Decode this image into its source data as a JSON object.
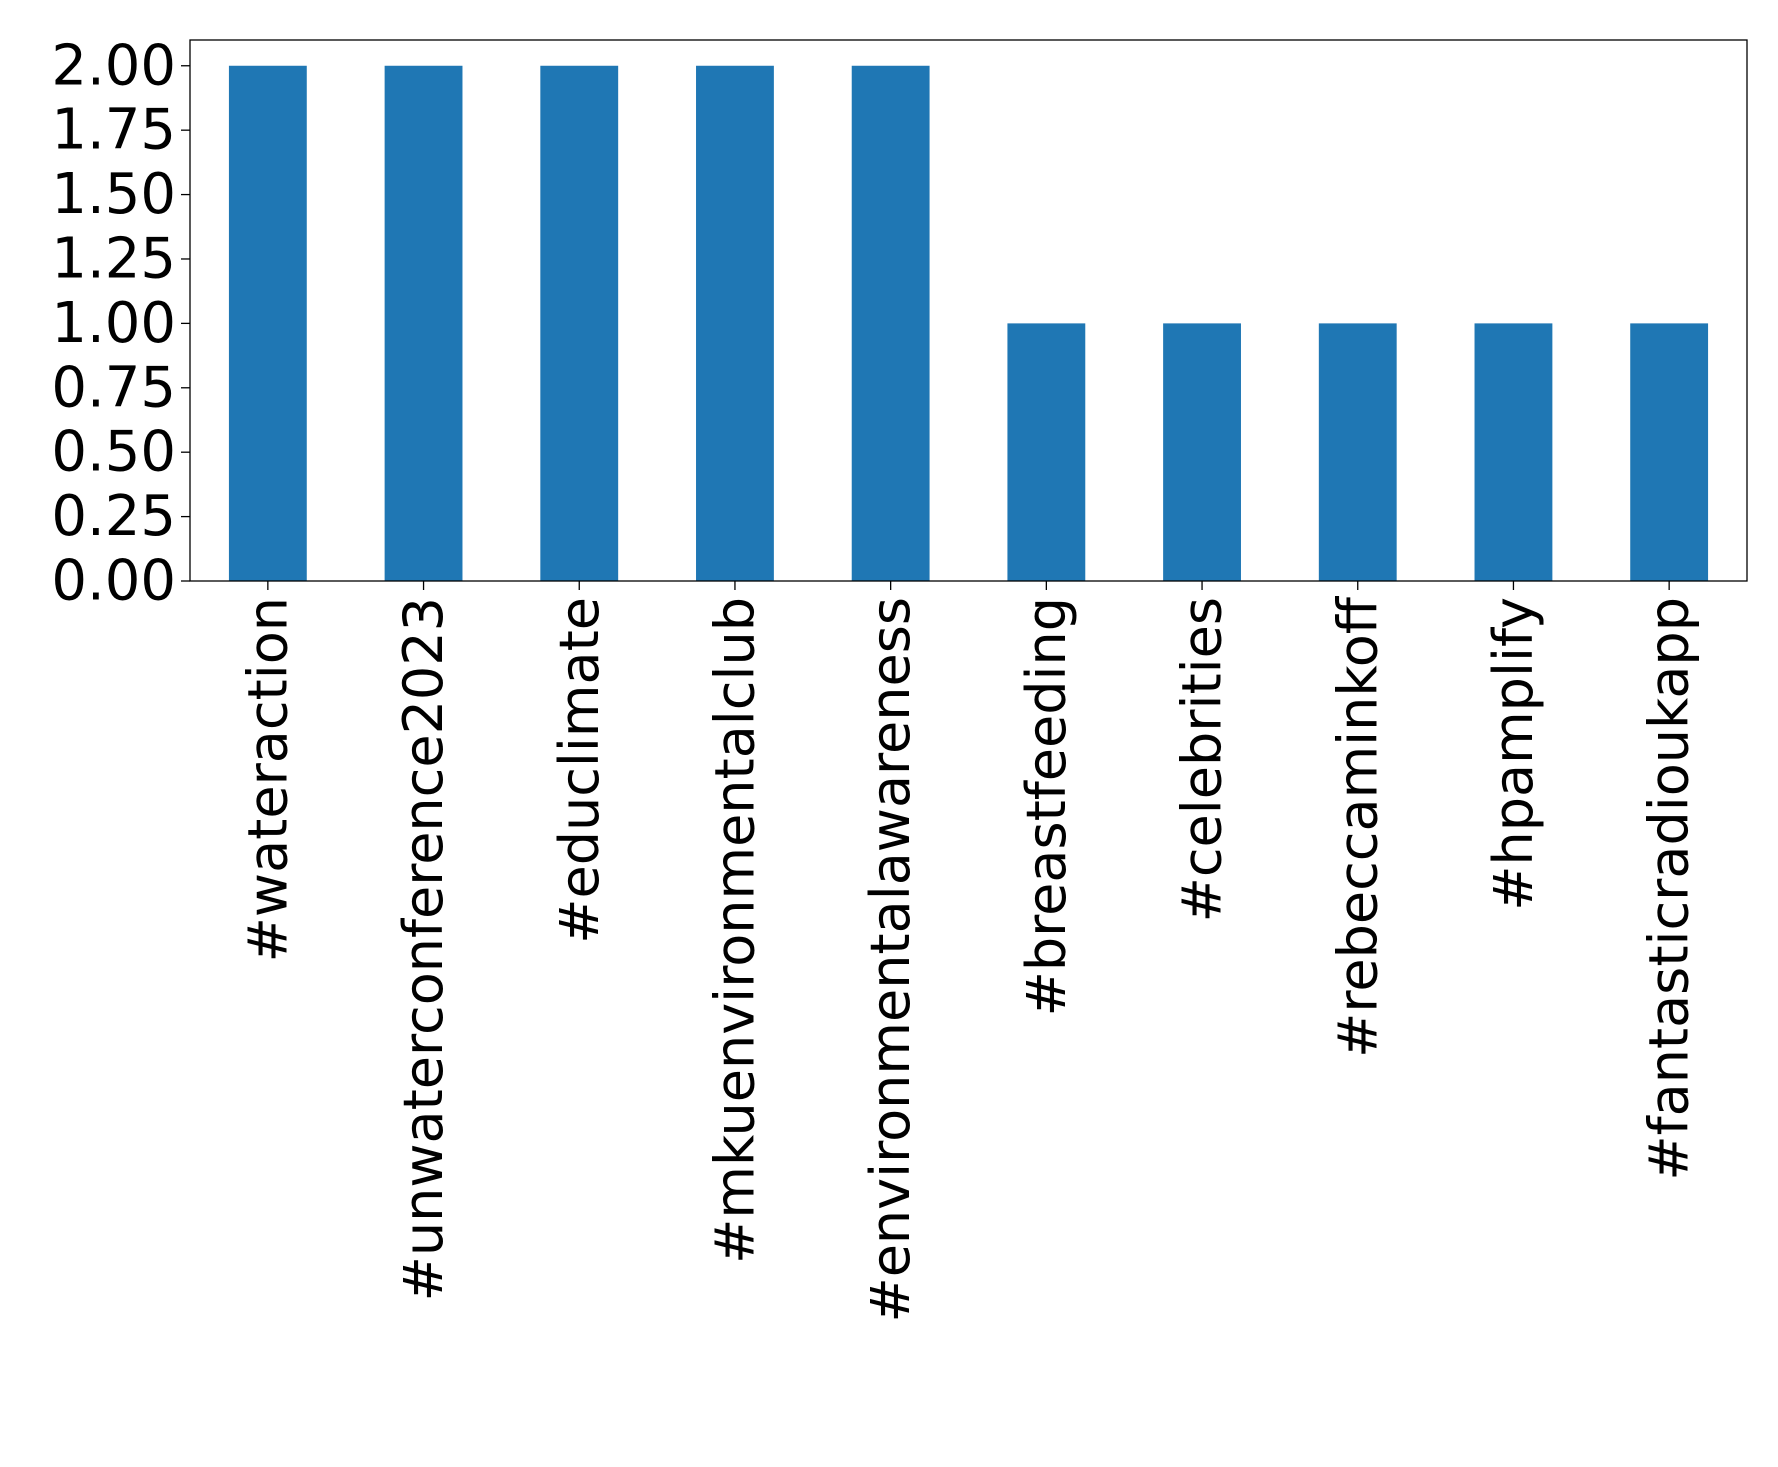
{
  "chart_data": {
    "type": "bar",
    "title": "",
    "xlabel": "",
    "ylabel": "",
    "categories": [
      "#wateraction",
      "#unwaterconference2023",
      "#educlimate",
      "#mkuenvironmentalclub",
      "#environmentalawareness",
      "#breastfeeding",
      "#celebrities",
      "#rebeccaminkoff",
      "#hpamplify",
      "#fantasticradioukapp"
    ],
    "values": [
      2,
      2,
      2,
      2,
      2,
      1,
      1,
      1,
      1,
      1
    ],
    "ylim": [
      0,
      2.1
    ],
    "yticks": [
      0,
      0.25,
      0.5,
      0.75,
      1.0,
      1.25,
      1.5,
      1.75,
      2.0
    ],
    "ytick_labels": [
      "0.00",
      "0.25",
      "0.50",
      "0.75",
      "1.00",
      "1.25",
      "1.50",
      "1.75",
      "2.00"
    ],
    "bar_color": "#1f77b4",
    "grid": false,
    "legend": "none"
  }
}
